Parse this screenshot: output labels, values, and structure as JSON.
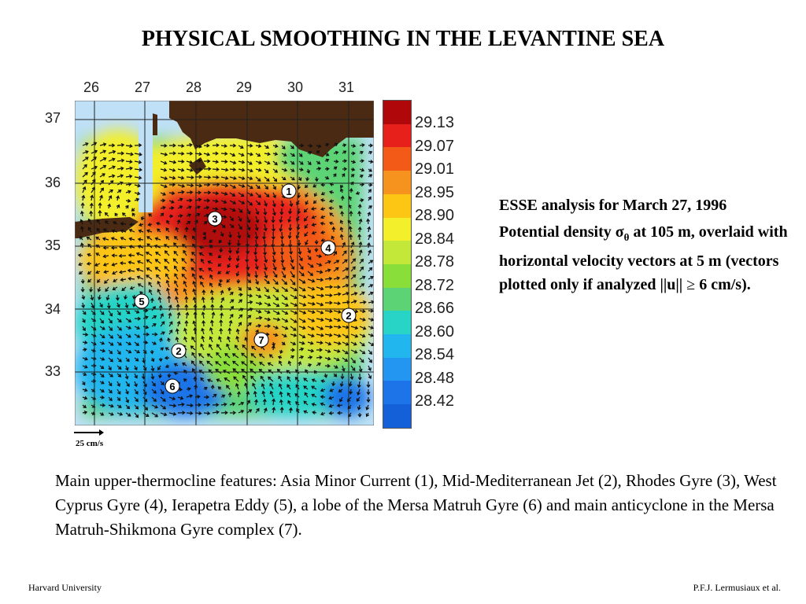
{
  "title": "PHYSICAL SMOOTHING IN THE LEVANTINE SEA",
  "map": {
    "longitude_ticks": [
      "26",
      "27",
      "28",
      "29",
      "30",
      "31"
    ],
    "latitude_ticks": [
      "37",
      "36",
      "35",
      "34",
      "33"
    ],
    "feature_markers": [
      "1",
      "2",
      "2",
      "3",
      "4",
      "5",
      "6",
      "7"
    ],
    "scale_label": "25 cm/s"
  },
  "colorbar": {
    "labels": [
      "29.13",
      "29.07",
      "29.01",
      "28.95",
      "28.90",
      "28.84",
      "28.78",
      "28.72",
      "28.66",
      "28.60",
      "28.54",
      "28.48",
      "28.42"
    ],
    "colors": [
      "#b0080a",
      "#e8201c",
      "#f35a18",
      "#f6921e",
      "#fdc514",
      "#f3ef2a",
      "#c4e83a",
      "#8ade3a",
      "#5cd476",
      "#28d4c6",
      "#22b6ee",
      "#2296f0",
      "#1c74e8",
      "#1460d8"
    ]
  },
  "side": {
    "line1": "ESSE analysis for March 27, 1996",
    "line2_prefix": "Potential density ",
    "sigma": "σ",
    "theta": "θ",
    "line2_suffix": " at 105 m, overlaid with horizontal velocity vectors at 5 m (vectors plotted only if analyzed ||u|| ",
    "geq": "≥",
    "line2_end": " 6 cm/s)."
  },
  "caption": "Main upper-thermocline features: Asia Minor Current (1), Mid-Mediterranean Jet (2), Rhodes Gyre (3), West Cyprus Gyre (4), Ierapetra Eddy (5), a lobe of the Mersa Matruh Gyre (6) and main anticyclone in the Mersa Matruh-Shikmona Gyre complex (7).",
  "footer": {
    "left": "Harvard University",
    "right": "P.F.J. Lermusiaux et al."
  }
}
